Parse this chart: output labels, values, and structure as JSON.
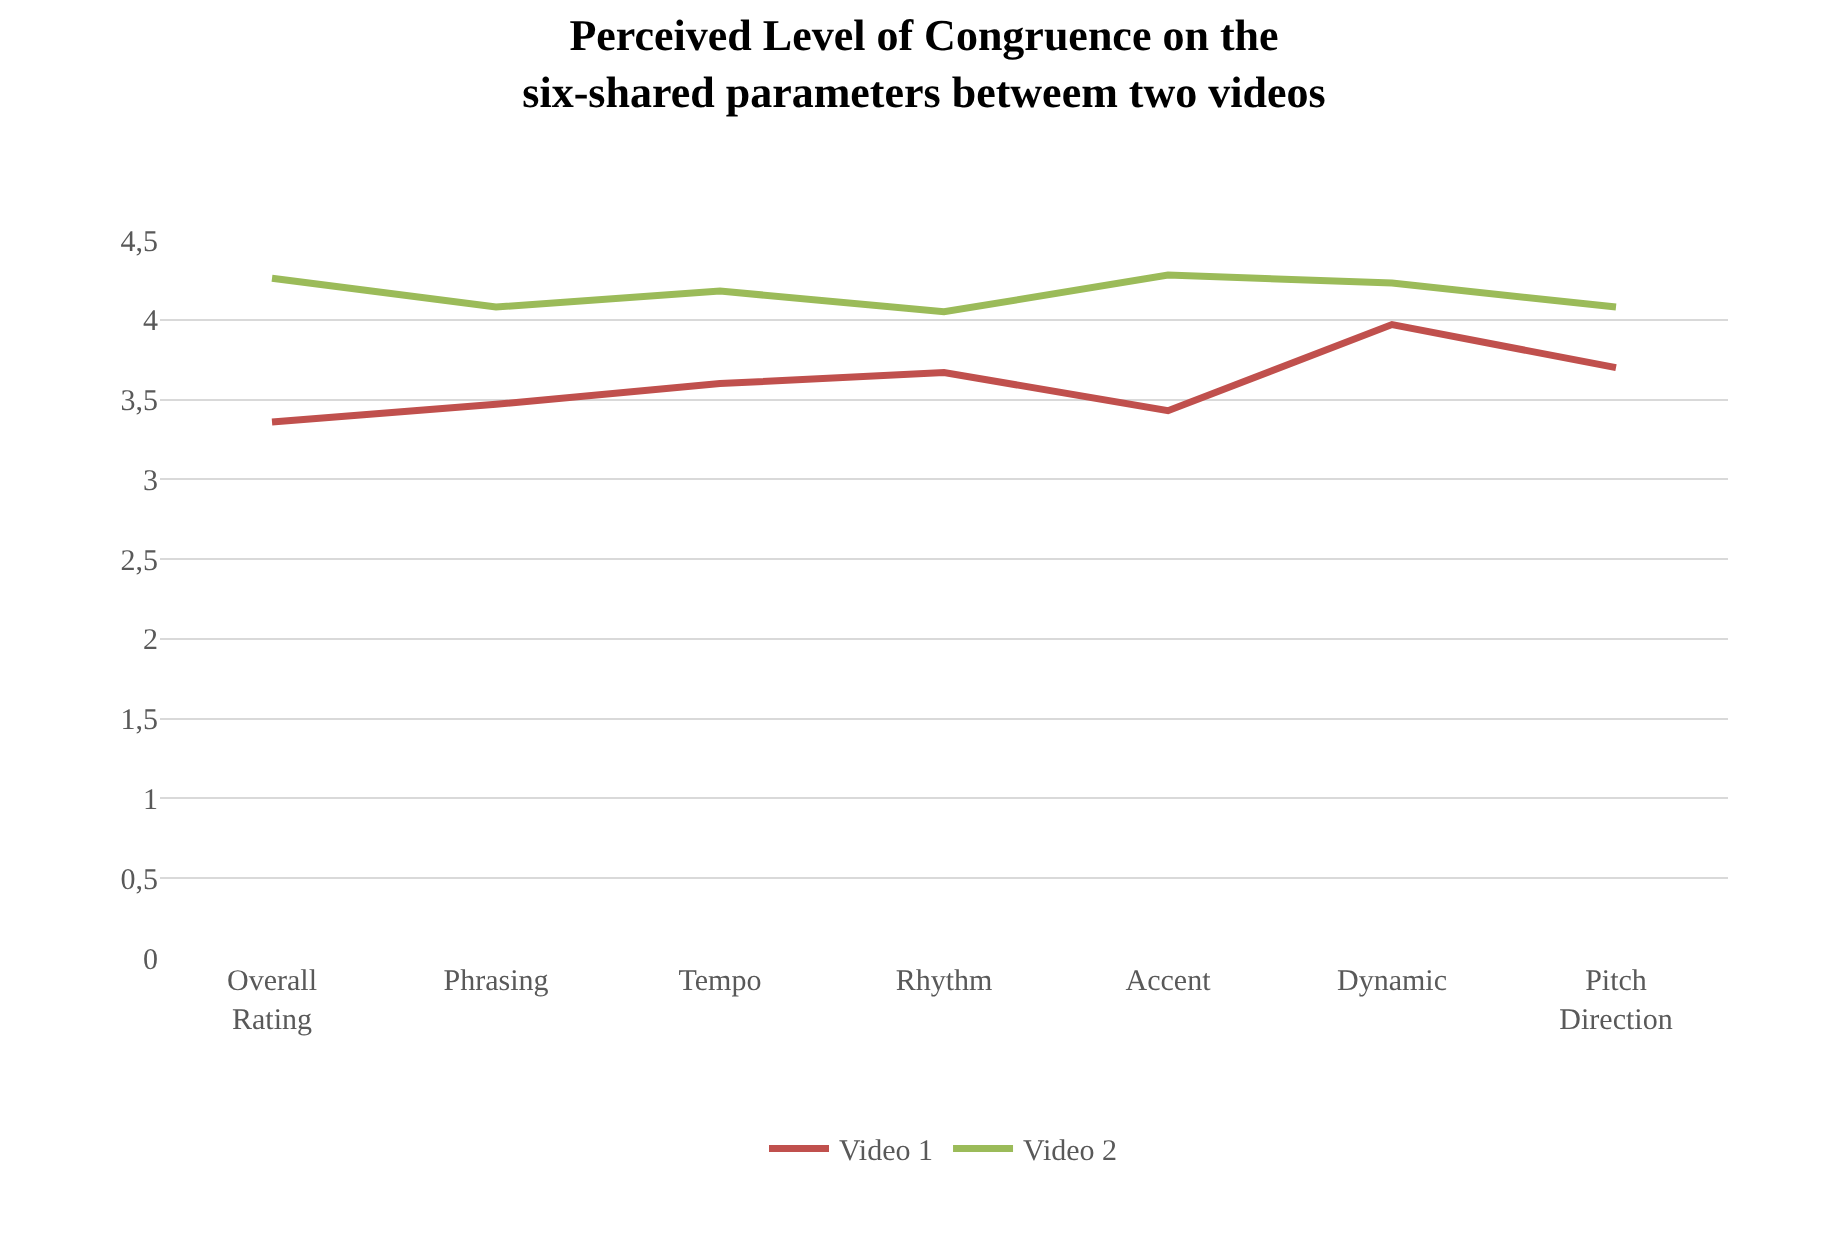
{
  "chart_data": {
    "type": "line",
    "title": "Perceived Level of Congruence on the six-shared parameters betweem two videos",
    "categories": [
      "Overall Rating",
      "Phrasing",
      "Tempo",
      "Rhythm",
      "Accent",
      "Dynamic",
      "Pitch Direction"
    ],
    "series": [
      {
        "name": "Video 1",
        "color": "#c0504d",
        "values": [
          3.36,
          3.47,
          3.6,
          3.67,
          3.43,
          3.97,
          3.7
        ]
      },
      {
        "name": "Video 2",
        "color": "#9bbb59",
        "values": [
          4.26,
          4.08,
          4.18,
          4.05,
          4.28,
          4.23,
          4.08
        ]
      }
    ],
    "ylim": [
      0,
      4.5
    ],
    "yticks": [
      0,
      {
        "value": 0.5,
        "label": "0,5"
      },
      1,
      {
        "value": 1.5,
        "label": "1,5"
      },
      2,
      {
        "value": 2.5,
        "label": "2,5"
      },
      3,
      {
        "value": 3.5,
        "label": "3,5"
      },
      4,
      {
        "value": 4.5,
        "label": "4,5"
      }
    ],
    "grid": "y",
    "legend": "bottom",
    "marker": "none",
    "line_style": "solid"
  }
}
